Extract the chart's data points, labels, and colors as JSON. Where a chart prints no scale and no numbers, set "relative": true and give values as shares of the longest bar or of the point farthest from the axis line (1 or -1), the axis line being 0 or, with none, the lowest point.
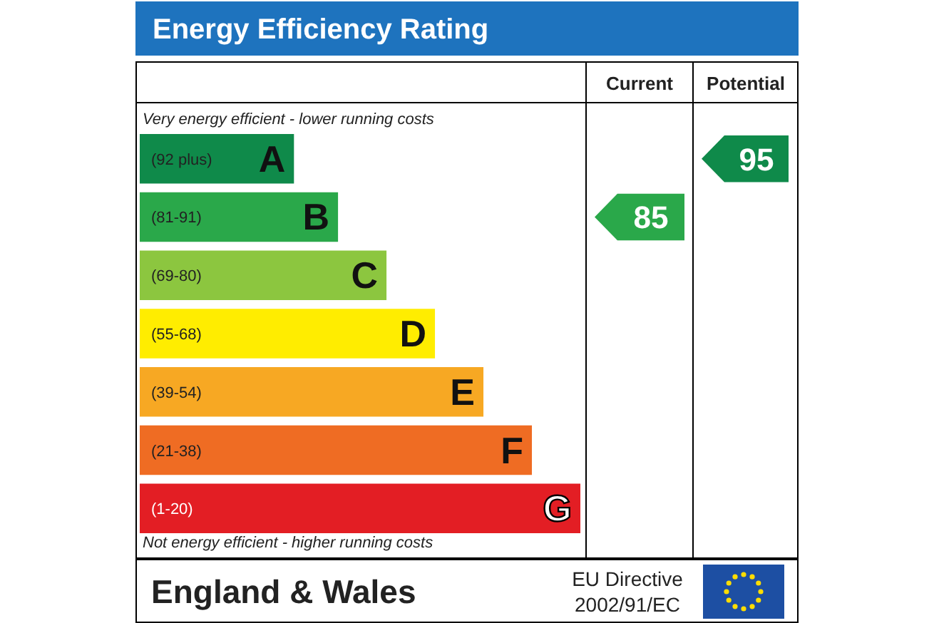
{
  "chart_data": {
    "type": "bar",
    "orientation": "horizontal",
    "relative": true,
    "title": "Energy Efficiency Rating",
    "categories": [
      "A",
      "B",
      "C",
      "D",
      "E",
      "F",
      "G"
    ],
    "values": [
      0.35,
      0.45,
      0.56,
      0.67,
      0.78,
      0.89,
      1
    ],
    "colors": [
      "#0f8a4a",
      "#2aa84a",
      "#8cc63f",
      "#ffed00",
      "#f7a823",
      "#ef6c23",
      "#e31e24"
    ],
    "annotations": [
      "(92 plus)",
      "(81-91)",
      "(69-80)",
      "(55-68)",
      "(39-54)",
      "(21-38)",
      "(1-20)",
      "Current",
      "Potential",
      "85",
      "95",
      "Very energy efficient - lower running costs",
      "Not energy efficient - higher running costs",
      "England & Wales",
      "EU Directive",
      "2002/91/EC"
    ]
  }
}
